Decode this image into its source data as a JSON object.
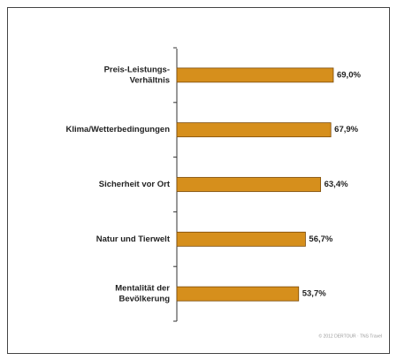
{
  "chart_data": {
    "type": "bar",
    "orientation": "horizontal",
    "categories": [
      [
        "Preis-Leistungs-",
        "Verhältnis"
      ],
      [
        "Klima/Wetterbedingungen"
      ],
      [
        "Sicherheit vor Ort"
      ],
      [
        "Natur und Tierwelt"
      ],
      [
        "Mentalität der",
        "Bevölkerung"
      ]
    ],
    "values": [
      69.0,
      67.9,
      63.4,
      56.7,
      53.7
    ],
    "value_labels": [
      "69,0%",
      "67,9%",
      "63,4%",
      "56,7%",
      "53,7%"
    ],
    "color": "#d68f1c",
    "xlim": [
      0,
      100
    ],
    "source": "© 2012 DERTOUR · TNS Travel"
  }
}
